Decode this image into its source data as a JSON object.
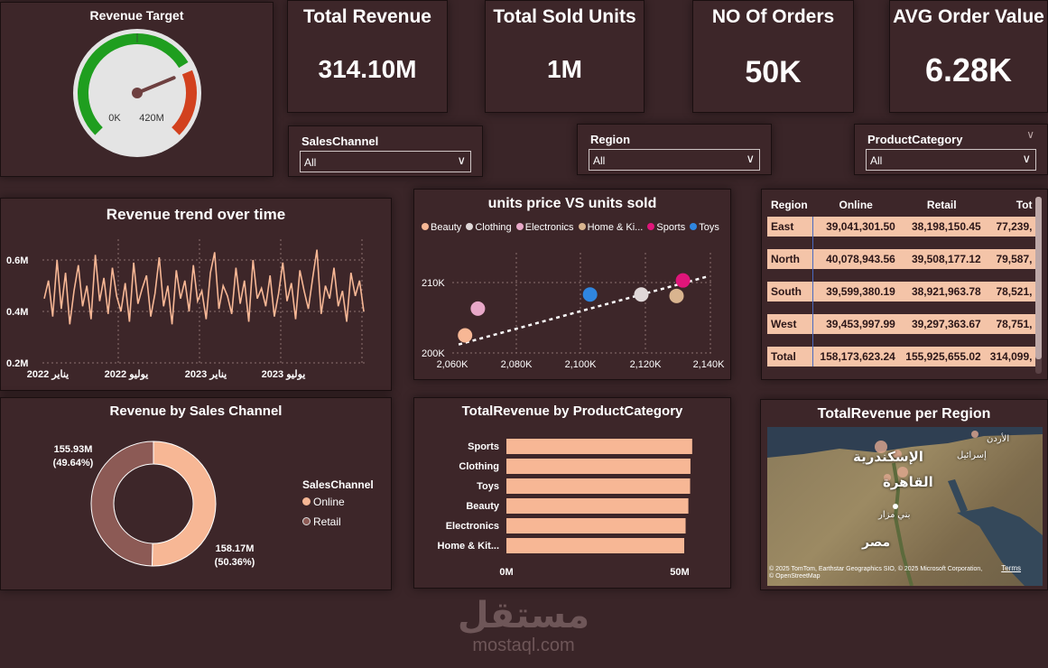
{
  "colors": {
    "background": "#3a2528",
    "card": "#3d2629",
    "accent": "#f7b795",
    "donut_retail": "#8c5a55",
    "gauge_green": "#1f9e1f",
    "gauge_red": "#d2411e"
  },
  "gauge": {
    "title": "Revenue Target",
    "min_label": "0K",
    "max_label": "420M",
    "fraction": 0.75
  },
  "kpis": [
    {
      "title": "Total Revenue",
      "value": "314.10M"
    },
    {
      "title": "Total Sold Units",
      "value": "1M"
    },
    {
      "title": "NO Of Orders",
      "value": "50K"
    },
    {
      "title": "AVG Order Value",
      "value": "6.28K"
    }
  ],
  "slicers": [
    {
      "label": "SalesChannel",
      "value": "All"
    },
    {
      "label": "Region",
      "value": "All"
    },
    {
      "label": "ProductCategory",
      "value": "All"
    }
  ],
  "trend": {
    "title": "Revenue trend over time",
    "y_ticks": [
      "0.6M",
      "0.4M",
      "0.2M"
    ],
    "x_ticks": [
      "يناير 2022",
      "يوليو 2022",
      "يناير 2023",
      "يوليو 2023"
    ]
  },
  "scatter": {
    "title": "units price VS units sold",
    "legend": [
      {
        "name": "Beauty",
        "color": "#f7b795"
      },
      {
        "name": "Clothing",
        "color": "#e0d8d8"
      },
      {
        "name": "Electronics",
        "color": "#e8a8c8"
      },
      {
        "name": "Home & Ki...",
        "color": "#d9b48f"
      },
      {
        "name": "Sports",
        "color": "#e0157a"
      },
      {
        "name": "Toys",
        "color": "#2f86e0"
      }
    ],
    "y_ticks": [
      "210K",
      "200K"
    ],
    "x_ticks": [
      "2,060K",
      "2,080K",
      "2,100K",
      "2,120K",
      "2,140K"
    ]
  },
  "table": {
    "headers": [
      "Region",
      "Online",
      "Retail",
      "Tot"
    ],
    "rows": [
      [
        "East",
        "39,041,301.50",
        "38,198,150.45",
        "77,239,"
      ],
      [
        "North",
        "40,078,943.56",
        "39,508,177.12",
        "79,587,"
      ],
      [
        "South",
        "39,599,380.19",
        "38,921,963.78",
        "78,521,"
      ],
      [
        "West",
        "39,453,997.99",
        "39,297,363.67",
        "78,751,"
      ],
      [
        "Total",
        "158,173,623.24",
        "155,925,655.02",
        "314,099,"
      ]
    ]
  },
  "donut": {
    "title": "Revenue by Sales Channel",
    "legend_title": "SalesChannel",
    "legend": [
      "Online",
      "Retail"
    ],
    "retail_label": "155.93M",
    "retail_pct": "(49.64%)",
    "online_label": "158.17M",
    "online_pct": "(50.36%)"
  },
  "bar": {
    "title": "TotalRevenue by ProductCategory",
    "x_ticks": [
      "0M",
      "50M"
    ]
  },
  "map": {
    "title": "TotalRevenue per Region",
    "labels": [
      "الإسكندرية",
      "القاهرة",
      "بني مزار",
      "مصر",
      "إسرائيل",
      "الأردن"
    ],
    "attribution": "© 2025 TomTom, Earthstar Geographics SIO, © 2025 Microsoft Corporation, © OpenStreetMap",
    "terms": "Terms"
  },
  "watermark": {
    "logo": "مستقل",
    "site": "mostaql.com"
  },
  "chart_data": [
    {
      "type": "line",
      "title": "Revenue trend over time",
      "xlabel": "",
      "ylabel": "",
      "x_range": [
        "2022-01",
        "2023-12"
      ],
      "ylim": [
        0.2,
        0.65
      ],
      "x_ticks": [
        "يناير 2022",
        "يوليو 2022",
        "يناير 2023",
        "يوليو 2023"
      ],
      "y_ticks": [
        "0.6M",
        "0.4M",
        "0.2M"
      ],
      "series": [
        {
          "values": [
            0.45,
            0.52,
            0.38,
            0.6,
            0.41,
            0.55,
            0.35,
            0.48,
            0.58,
            0.42,
            0.5,
            0.37,
            0.62,
            0.44,
            0.53,
            0.39,
            0.57,
            0.46,
            0.4,
            0.51,
            0.36,
            0.59,
            0.43,
            0.49,
            0.54,
            0.38,
            0.47,
            0.61,
            0.42,
            0.5,
            0.35,
            0.56,
            0.45,
            0.52,
            0.4,
            0.58,
            0.44,
            0.48,
            0.37,
            0.55,
            0.63,
            0.41,
            0.5,
            0.46,
            0.39,
            0.57,
            0.43,
            0.52,
            0.36,
            0.6,
            0.45,
            0.49,
            0.42,
            0.54,
            0.38,
            0.47,
            0.59,
            0.44,
            0.51,
            0.37,
            0.56,
            0.48,
            0.41,
            0.53,
            0.64,
            0.39,
            0.5,
            0.45,
            0.57,
            0.42,
            0.48,
            0.36,
            0.55,
            0.46,
            0.52,
            0.4
          ]
        }
      ]
    },
    {
      "type": "scatter",
      "title": "units price VS units sold",
      "xlim": [
        2050,
        2145
      ],
      "ylim": [
        199,
        213
      ],
      "x_ticks": [
        "2,060K",
        "2,080K",
        "2,100K",
        "2,120K",
        "2,140K"
      ],
      "y_ticks": [
        "210K",
        "200K"
      ],
      "trendline": true,
      "series": [
        {
          "name": "Beauty",
          "x": 2064,
          "y": 202.5
        },
        {
          "name": "Clothing",
          "x": 2119,
          "y": 208.3
        },
        {
          "name": "Electronics",
          "x": 2068,
          "y": 206.3
        },
        {
          "name": "Home & Ki...",
          "x": 2130,
          "y": 208.1
        },
        {
          "name": "Sports",
          "x": 2132,
          "y": 210.3
        },
        {
          "name": "Toys",
          "x": 2103,
          "y": 208.3
        }
      ]
    },
    {
      "type": "pie",
      "title": "Revenue by Sales Channel",
      "categories": [
        "Online",
        "Retail"
      ],
      "values": [
        158.17,
        155.93
      ],
      "labels": [
        "158.17M (50.36%)",
        "155.93M (49.64%)"
      ]
    },
    {
      "type": "bar",
      "title": "TotalRevenue by ProductCategory",
      "categories": [
        "Sports",
        "Clothing",
        "Toys",
        "Beauty",
        "Electronics",
        "Home & Kit..."
      ],
      "values": [
        53.6,
        53.1,
        53.0,
        52.5,
        51.7,
        51.3
      ],
      "xlim": [
        0,
        60
      ],
      "x_ticks": [
        "0M",
        "50M"
      ]
    }
  ]
}
